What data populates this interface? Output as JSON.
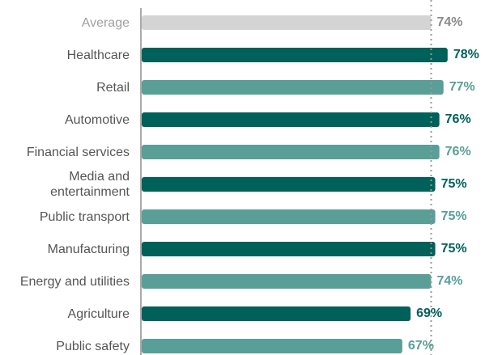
{
  "chart_data": {
    "type": "bar",
    "orientation": "horizontal",
    "categories": [
      "Average",
      "Healthcare",
      "Retail",
      "Automotive",
      "Financial services",
      "Media and entertainment",
      "Public transport",
      "Manufacturing",
      "Energy and utilities",
      "Agriculture",
      "Public safety"
    ],
    "values": [
      74,
      78,
      77,
      76,
      76,
      75,
      75,
      75,
      74,
      69,
      67
    ],
    "value_labels": [
      "74%",
      "78%",
      "77%",
      "76%",
      "76%",
      "75%",
      "75%",
      "75%",
      "74%",
      "69%",
      "67%"
    ],
    "colors": [
      "#d4d4d4",
      "#00605a",
      "#5a9e98",
      "#00605a",
      "#5a9e98",
      "#00605a",
      "#5a9e98",
      "#00605a",
      "#5a9e98",
      "#00605a",
      "#5a9e98"
    ],
    "label_colors": [
      "#8a8a8a",
      "#00605a",
      "#5a9e98",
      "#00605a",
      "#5a9e98",
      "#00605a",
      "#5a9e98",
      "#00605a",
      "#5a9e98",
      "#00605a",
      "#5a9e98"
    ],
    "category_colors": [
      "#a0a0a0",
      "#555555",
      "#555555",
      "#555555",
      "#555555",
      "#555555",
      "#555555",
      "#555555",
      "#555555",
      "#555555",
      "#555555"
    ],
    "xlim": [
      3.5,
      80
    ]
  }
}
